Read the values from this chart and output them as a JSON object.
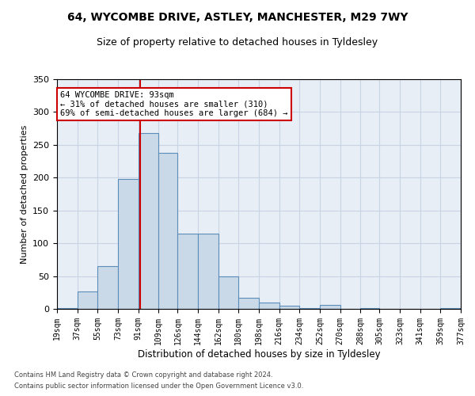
{
  "title1": "64, WYCOMBE DRIVE, ASTLEY, MANCHESTER, M29 7WY",
  "title2": "Size of property relative to detached houses in Tyldesley",
  "xlabel": "Distribution of detached houses by size in Tyldesley",
  "ylabel": "Number of detached properties",
  "footer1": "Contains HM Land Registry data © Crown copyright and database right 2024.",
  "footer2": "Contains public sector information licensed under the Open Government Licence v3.0.",
  "annotation_title": "64 WYCOMBE DRIVE: 93sqm",
  "annotation_line1": "← 31% of detached houses are smaller (310)",
  "annotation_line2": "69% of semi-detached houses are larger (684) →",
  "property_size": 93,
  "bar_edges": [
    19,
    37,
    55,
    73,
    91,
    109,
    126,
    144,
    162,
    180,
    198,
    216,
    234,
    252,
    270,
    288,
    305,
    323,
    341,
    359,
    377
  ],
  "bar_heights": [
    1,
    27,
    65,
    198,
    268,
    238,
    115,
    115,
    49,
    17,
    10,
    5,
    1,
    6,
    0,
    1,
    0,
    0,
    0,
    1
  ],
  "bar_color": "#c9d9e8",
  "bar_edge_color": "#5b8db8",
  "vline_color": "#cc0000",
  "grid_color": "#c8d4e4",
  "background_color": "#e8eef6",
  "ylim": [
    0,
    350
  ],
  "yticks": [
    0,
    50,
    100,
    150,
    200,
    250,
    300,
    350
  ]
}
